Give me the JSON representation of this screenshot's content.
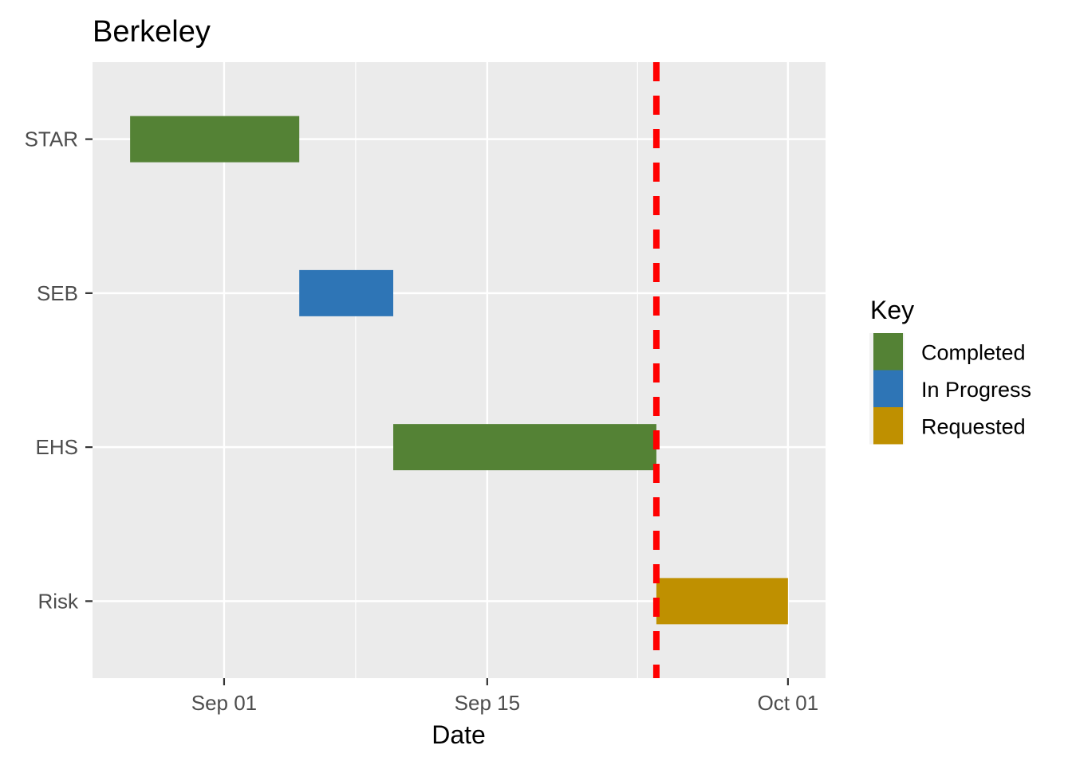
{
  "chart_data": {
    "type": "bar",
    "orientation": "horizontal-gantt",
    "title": "Berkeley",
    "xlabel": "Date",
    "ylabel": "",
    "categories": [
      "STAR",
      "SEB",
      "EHS",
      "Risk"
    ],
    "tasks": [
      {
        "category": "STAR",
        "start": "2023-08-27",
        "end": "2023-09-05",
        "status": "Completed"
      },
      {
        "category": "SEB",
        "start": "2023-09-05",
        "end": "2023-09-10",
        "status": "In Progress"
      },
      {
        "category": "EHS",
        "start": "2023-09-10",
        "end": "2023-09-24",
        "status": "Completed"
      },
      {
        "category": "Risk",
        "start": "2023-09-24",
        "end": "2023-10-01",
        "status": "Requested"
      }
    ],
    "xlim": [
      "2023-08-25",
      "2023-10-03"
    ],
    "x_ticks": [
      {
        "date": "2023-09-01",
        "label": "Sep 01"
      },
      {
        "date": "2023-09-15",
        "label": "Sep 15"
      },
      {
        "date": "2023-10-01",
        "label": "Oct 01"
      }
    ],
    "x_minor_ticks": [
      "2023-09-08",
      "2023-09-23"
    ],
    "reference_line": {
      "date": "2023-09-24",
      "color": "#ff0000",
      "style": "dashed"
    },
    "grid": true,
    "panel_background": "#ebebeb",
    "legend": {
      "title": "Key",
      "placement": "right",
      "items": [
        {
          "label": "Completed",
          "color": "#548235"
        },
        {
          "label": "In Progress",
          "color": "#2e75b6"
        },
        {
          "label": "Requested",
          "color": "#bf9000"
        }
      ]
    }
  }
}
